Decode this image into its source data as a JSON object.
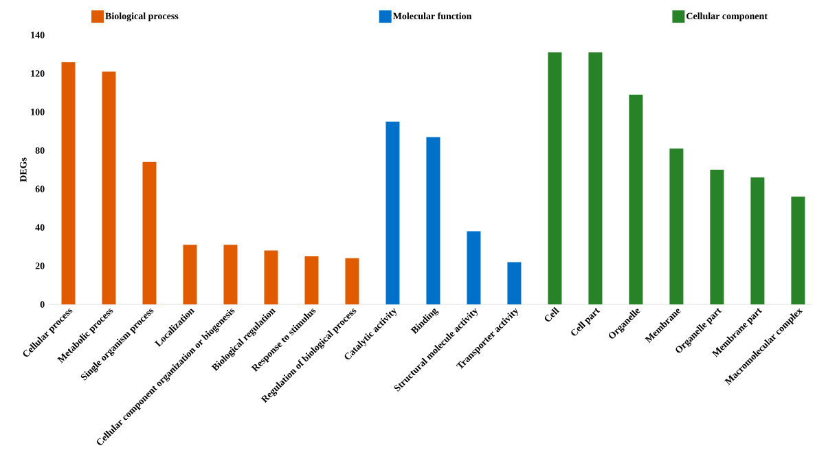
{
  "chart_data": {
    "type": "bar",
    "ylabel": "DEGs",
    "categories": [
      "Cellular process",
      "Metabolic process",
      "Single organism process",
      "Localization",
      "Cellular component organization or biogenesis",
      "Biological regulation",
      "Response to stimulus",
      "Regulation of biological process",
      "Catalytic activity",
      "Binding",
      "Structural molecule activity",
      "Transporter activity",
      "Cell",
      "Cell part",
      "Organelle",
      "Membrane",
      "Organelle part",
      "Membrane part",
      "Macromolecular complex"
    ],
    "series": [
      {
        "name": "Biological process",
        "color": "#e05a00",
        "values": [
          126,
          121,
          74,
          31,
          31,
          28,
          25,
          24,
          null,
          null,
          null,
          null,
          null,
          null,
          null,
          null,
          null,
          null,
          null
        ]
      },
      {
        "name": "Molecular function",
        "color": "#0070c8",
        "values": [
          null,
          null,
          null,
          null,
          null,
          null,
          null,
          null,
          95,
          87,
          38,
          22,
          null,
          null,
          null,
          null,
          null,
          null,
          null
        ]
      },
      {
        "name": "Cellular component",
        "color": "#288228",
        "values": [
          null,
          null,
          null,
          null,
          null,
          null,
          null,
          null,
          null,
          null,
          null,
          null,
          131,
          131,
          109,
          81,
          70,
          66,
          56
        ]
      }
    ],
    "ylim": [
      0,
      140
    ],
    "yticks": [
      0,
      20,
      40,
      60,
      80,
      100,
      120,
      140
    ],
    "grid": false,
    "legend": "top"
  }
}
